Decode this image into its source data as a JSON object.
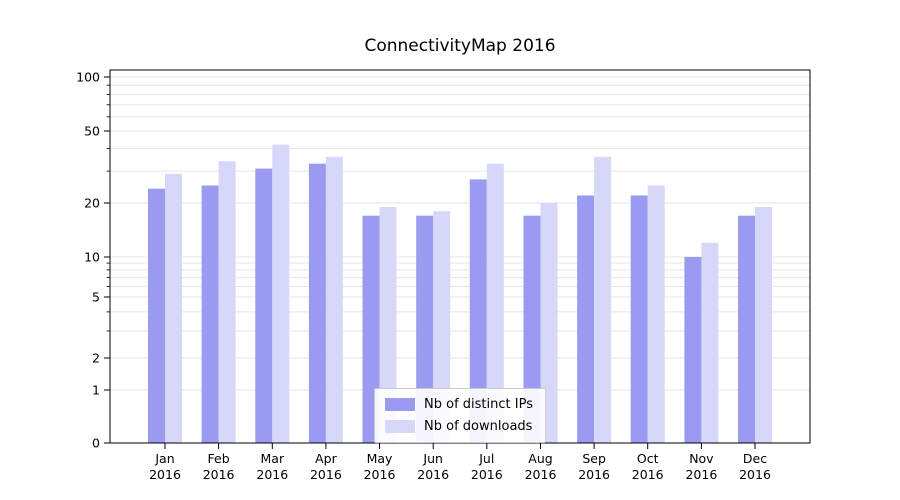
{
  "title": "ConnectivityMap 2016",
  "colors": {
    "ips": "#9a9af1",
    "downloads": "#d7d7f9",
    "grid": "#e6e6e6",
    "axis": "#000000",
    "legend_border": "#cccccc",
    "background": "#ffffff"
  },
  "chart_data": {
    "type": "bar",
    "title": "ConnectivityMap 2016",
    "categories": [
      "Jan",
      "Feb",
      "Mar",
      "Apr",
      "May",
      "Jun",
      "Jul",
      "Aug",
      "Sep",
      "Oct",
      "Nov",
      "Dec"
    ],
    "year_label": "2016",
    "series": [
      {
        "name": "Nb of distinct IPs",
        "color": "#9a9af1",
        "values": [
          24,
          25,
          31,
          33,
          17,
          17,
          27,
          17,
          22,
          22,
          10,
          17
        ]
      },
      {
        "name": "Nb of downloads",
        "color": "#d7d7f9",
        "values": [
          29,
          34,
          42,
          36,
          19,
          18,
          33,
          20,
          36,
          25,
          12,
          19
        ]
      }
    ],
    "yscale": "symlog",
    "yticks": [
      0,
      1,
      2,
      5,
      10,
      20,
      50,
      100
    ],
    "ytick_labels": [
      "0",
      "1",
      "2",
      "5",
      "10",
      "20",
      "50",
      "100"
    ],
    "ylim": [
      0,
      110
    ],
    "xlabel": "",
    "ylabel": "",
    "grid": "horizontal",
    "legend_position": "lower center"
  }
}
